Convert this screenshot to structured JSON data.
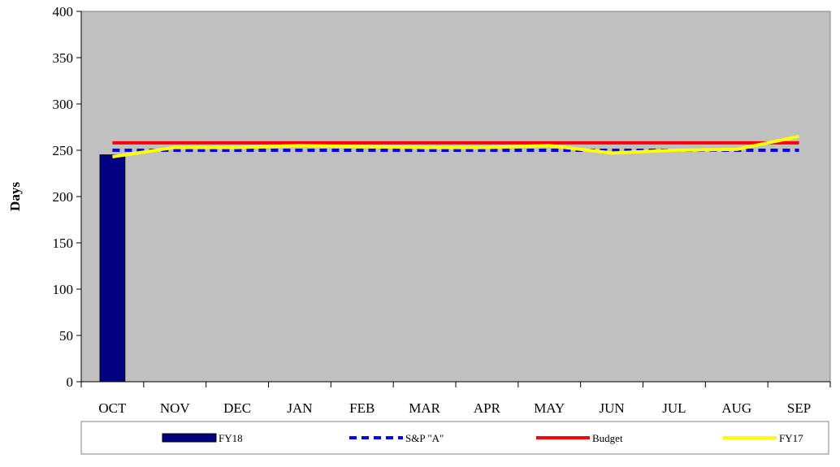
{
  "chart_data": {
    "type": "bar",
    "title": "",
    "xlabel": "",
    "ylabel": "Days",
    "ylim": [
      0,
      400
    ],
    "yticks": [
      0,
      50,
      100,
      150,
      200,
      250,
      300,
      350,
      400
    ],
    "categories": [
      "OCT",
      "NOV",
      "DEC",
      "JAN",
      "FEB",
      "MAR",
      "APR",
      "MAY",
      "JUN",
      "JUL",
      "AUG",
      "SEP"
    ],
    "grid": false,
    "legend_position": "bottom",
    "plot_background": "#C0C0C0",
    "series": [
      {
        "name": "FY18",
        "kind": "bar",
        "color": "#000080",
        "values": [
          245,
          null,
          null,
          null,
          null,
          null,
          null,
          null,
          null,
          null,
          null,
          null
        ]
      },
      {
        "name": "S&P \"A\"",
        "kind": "line",
        "style": "dashed",
        "color": "#0000FF",
        "values": [
          250,
          250,
          250,
          250,
          250,
          250,
          250,
          250,
          250,
          250,
          250,
          250
        ]
      },
      {
        "name": "Budget",
        "kind": "line",
        "style": "solid",
        "color": "#FF0000",
        "values": [
          258,
          258,
          258,
          258,
          258,
          258,
          258,
          258,
          258,
          258,
          258,
          258
        ]
      },
      {
        "name": "FY17",
        "kind": "line",
        "style": "solid",
        "color": "#FFFF00",
        "values": [
          243,
          253,
          253,
          255,
          254,
          253,
          253,
          255,
          247,
          250,
          251,
          265
        ]
      }
    ]
  }
}
